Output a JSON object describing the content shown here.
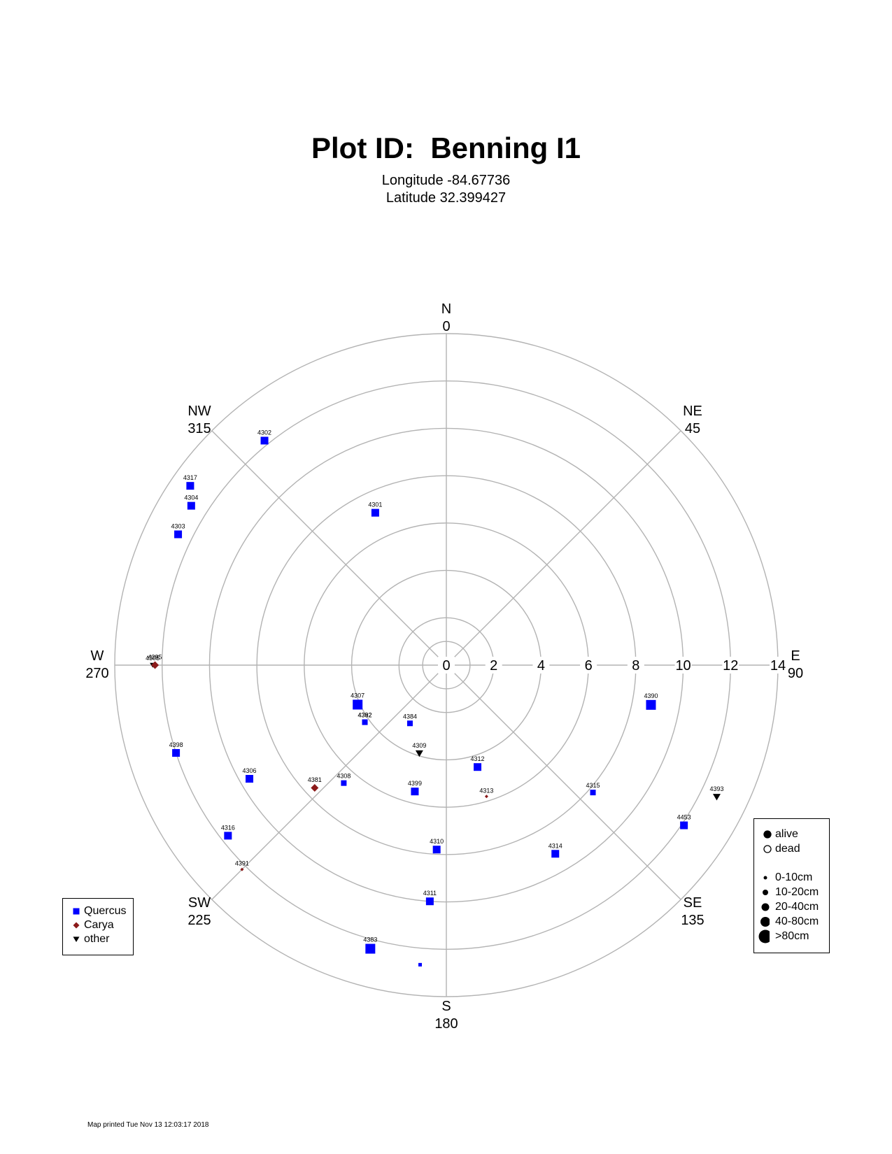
{
  "page": {
    "title": "Plot ID:  Benning I1",
    "longitude": "Longitude -84.67736",
    "latitude": "Latitude 32.399427",
    "footer": "Map printed Tue Nov 13 12:03:17 2018"
  },
  "chart_data": {
    "type": "scatter",
    "coordinate_system": "polar",
    "title": "Plot ID:  Benning I1",
    "subtitle": [
      "Longitude -84.67736",
      "Latitude 32.399427"
    ],
    "radial_axis": {
      "range": [
        0,
        14
      ],
      "ticks": [
        0,
        2,
        4,
        6,
        8,
        10,
        12,
        14
      ],
      "tick_labels": [
        "0",
        "2",
        "4",
        "6",
        "8",
        "10",
        "12",
        "14"
      ]
    },
    "direction_labels": [
      {
        "name": "N",
        "degrees": "0",
        "angle": 0
      },
      {
        "name": "NE",
        "degrees": "45",
        "angle": 45
      },
      {
        "name": "E",
        "degrees": "90",
        "angle": 90
      },
      {
        "name": "SE",
        "degrees": "135",
        "angle": 135
      },
      {
        "name": "S",
        "degrees": "180",
        "angle": 180
      },
      {
        "name": "SW",
        "degrees": "225",
        "angle": 225
      },
      {
        "name": "W",
        "degrees": "270",
        "angle": 270
      },
      {
        "name": "NW",
        "degrees": "315",
        "angle": 315
      }
    ],
    "ring_extras": [
      1
    ],
    "grid": true,
    "points": [
      {
        "id": "4301",
        "azimuth": 335,
        "distance": 7.1,
        "species": "Quercus",
        "size": "20-40cm"
      },
      {
        "id": "4302",
        "azimuth": 321,
        "distance": 12.2,
        "species": "Quercus",
        "size": "20-40cm"
      },
      {
        "id": "4303",
        "azimuth": 296,
        "distance": 12.6,
        "species": "Quercus",
        "size": "20-40cm"
      },
      {
        "id": "4304",
        "azimuth": 302,
        "distance": 12.7,
        "species": "Quercus",
        "size": "20-40cm"
      },
      {
        "id": "4317",
        "azimuth": 305,
        "distance": 13.2,
        "species": "Quercus",
        "size": "20-40cm"
      },
      {
        "id": "4305",
        "azimuth": 270,
        "distance": 12.4,
        "species": "other",
        "size": "10-20cm"
      },
      {
        "id": "4395",
        "azimuth": 270,
        "distance": 12.3,
        "species": "Carya",
        "size": "20-40cm"
      },
      {
        "id": "4398",
        "azimuth": 252,
        "distance": 12.0,
        "species": "Quercus",
        "size": "20-40cm"
      },
      {
        "id": "4306",
        "azimuth": 240,
        "distance": 9.6,
        "species": "Quercus",
        "size": "20-40cm"
      },
      {
        "id": "4316",
        "azimuth": 232,
        "distance": 11.7,
        "species": "Quercus",
        "size": "20-40cm"
      },
      {
        "id": "4391",
        "azimuth": 225,
        "distance": 12.2,
        "species": "Carya",
        "size": "0-10cm"
      },
      {
        "id": "4381",
        "azimuth": 227,
        "distance": 7.6,
        "species": "Carya",
        "size": "20-40cm"
      },
      {
        "id": "4307",
        "azimuth": 246,
        "distance": 4.1,
        "species": "Quercus",
        "size": "40-80cm"
      },
      {
        "id": "4382",
        "azimuth": 235,
        "distance": 4.2,
        "species": "Quercus",
        "size": "10-20cm"
      },
      {
        "id": "4392",
        "azimuth": 235,
        "distance": 4.2,
        "species": "Quercus",
        "size": "10-20cm"
      },
      {
        "id": "4384",
        "azimuth": 212,
        "distance": 2.9,
        "species": "Quercus",
        "size": "10-20cm"
      },
      {
        "id": "4308",
        "azimuth": 221,
        "distance": 6.6,
        "species": "Quercus",
        "size": "10-20cm"
      },
      {
        "id": "4309",
        "azimuth": 197,
        "distance": 3.9,
        "species": "other",
        "size": "20-40cm"
      },
      {
        "id": "4399",
        "azimuth": 194,
        "distance": 5.5,
        "species": "Quercus",
        "size": "20-40cm"
      },
      {
        "id": "4312",
        "azimuth": 163,
        "distance": 4.5,
        "species": "Quercus",
        "size": "20-40cm"
      },
      {
        "id": "4313",
        "azimuth": 163,
        "distance": 5.8,
        "species": "Carya",
        "size": "0-10cm"
      },
      {
        "id": "4310",
        "azimuth": 183,
        "distance": 7.8,
        "species": "Quercus",
        "size": "20-40cm"
      },
      {
        "id": "4311",
        "azimuth": 184,
        "distance": 10.0,
        "species": "Quercus",
        "size": "20-40cm"
      },
      {
        "id": "4383",
        "azimuth": 195,
        "distance": 12.4,
        "species": "Quercus",
        "size": "40-80cm"
      },
      {
        "id": "",
        "azimuth": 185,
        "distance": 12.7,
        "species": "Quercus",
        "size": "0-10cm"
      },
      {
        "id": "4314",
        "azimuth": 150,
        "distance": 9.2,
        "species": "Quercus",
        "size": "20-40cm"
      },
      {
        "id": "4315",
        "azimuth": 131,
        "distance": 8.2,
        "species": "Quercus",
        "size": "10-20cm"
      },
      {
        "id": "4390",
        "azimuth": 101,
        "distance": 8.8,
        "species": "Quercus",
        "size": "40-80cm"
      },
      {
        "id": "4393",
        "azimuth": 116,
        "distance": 12.7,
        "species": "other",
        "size": "20-40cm"
      },
      {
        "id": "4453",
        "azimuth": 124,
        "distance": 12.1,
        "species": "Quercus",
        "size": "20-40cm"
      }
    ],
    "species_legend": [
      {
        "label": "Quercus",
        "shape": "square",
        "color": "#0000ff"
      },
      {
        "label": "Carya",
        "shape": "diamond",
        "color": "#8b1a1a"
      },
      {
        "label": "other",
        "shape": "triangle",
        "color": "#000000"
      }
    ],
    "status_legend": [
      {
        "label": "alive",
        "filled": true
      },
      {
        "label": "dead",
        "filled": false
      }
    ],
    "size_legend": [
      {
        "label": "0-10cm",
        "r": 2.5
      },
      {
        "label": "10-20cm",
        "r": 4
      },
      {
        "label": "20-40cm",
        "r": 5.5
      },
      {
        "label": "40-80cm",
        "r": 7
      },
      {
        "label": ">80cm",
        "r": 9.5
      }
    ],
    "colors": {
      "grid": "#b3b3b3",
      "Quercus": "#0000ff",
      "Carya": "#8b1a1a",
      "other": "#000000"
    }
  }
}
